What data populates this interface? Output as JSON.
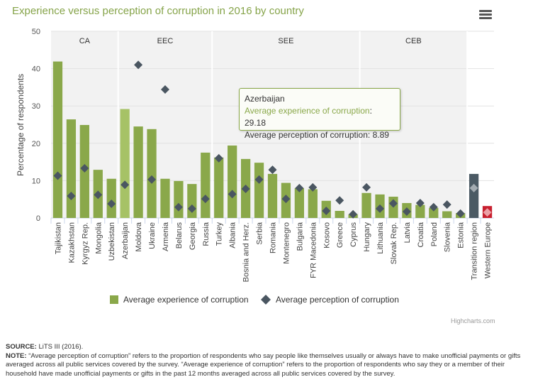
{
  "chart_data": {
    "type": "bar",
    "title": "Experience versus perception of corruption in 2016 by country",
    "ylabel": "Percentage of respondents",
    "xlabel": "",
    "ylim": [
      0,
      50
    ],
    "yticks": [
      0,
      10,
      20,
      30,
      40,
      50
    ],
    "grid": true,
    "legend_placement": "bottom",
    "categories": [
      "Tajikistan",
      "Kazakhstan",
      "Kyrgyz Rep.",
      "Mongolia",
      "Uzbekistan",
      "Azerbaijan",
      "Moldova",
      "Ukraine",
      "Armenia",
      "Belarus",
      "Georgia",
      "Russia",
      "Turkey",
      "Albania",
      "Bosnia and Herz.",
      "Serbia",
      "Romania",
      "Montenegro",
      "Bulgaria",
      "FYR Macedonia",
      "Kosovo",
      "Greece",
      "Cyprus",
      "Hungary",
      "Lithuania",
      "Slovak Rep.",
      "Latvia",
      "Croatia",
      "Poland",
      "Slovenia",
      "Estonia",
      "Transition region",
      "Western Europe"
    ],
    "regions": [
      {
        "label": "CA",
        "from": "Tajikistan",
        "to": "Uzbekistan"
      },
      {
        "label": "EEC",
        "from": "Azerbaijan",
        "to": "Russia"
      },
      {
        "label": "SEE",
        "from": "Turkey",
        "to": "Cyprus"
      },
      {
        "label": "CEB",
        "from": "Hungary",
        "to": "Estonia"
      }
    ],
    "series": [
      {
        "name": "Average experience of corruption",
        "type": "bar",
        "color": "#8aa84a",
        "values": [
          41.9,
          26.4,
          24.9,
          12.9,
          10.5,
          29.18,
          24.5,
          23.8,
          10.5,
          9.9,
          9.1,
          17.5,
          16.2,
          19.4,
          15.8,
          14.8,
          11.8,
          9.4,
          8.0,
          7.7,
          4.6,
          1.9,
          1.0,
          6.7,
          6.3,
          5.7,
          4.0,
          3.5,
          2.7,
          1.8,
          1.3,
          11.8,
          3.2
        ]
      },
      {
        "name": "Average perception of corruption",
        "type": "scatter",
        "marker": "diamond",
        "color": "#4a5661",
        "values": [
          11.3,
          5.9,
          13.3,
          6.2,
          3.8,
          8.89,
          41.0,
          10.3,
          34.4,
          2.9,
          2.5,
          5.1,
          16.0,
          6.4,
          7.8,
          10.3,
          12.9,
          5.1,
          8.0,
          8.2,
          1.9,
          4.7,
          1.0,
          8.2,
          2.5,
          3.9,
          1.7,
          4.0,
          2.9,
          3.6,
          1.2,
          8.0,
          1.5
        ]
      }
    ],
    "highlight_colors": {
      "hovered_bar": "#a6c266",
      "transition_bar": "#4b5a64",
      "transition_marker": "#a3abb1",
      "western_bar": "#c8202f",
      "western_marker": "#eba0a6",
      "band": "#f2f2f2"
    },
    "tooltip": {
      "country": "Azerbaijan",
      "exp_label": "Average experience of corruption",
      "exp_value": "29.18",
      "perc_label": "Average perception of corruption",
      "perc_value": "8.89"
    }
  },
  "menu_icon": "hamburger-menu-icon",
  "credits": "Highcharts.com",
  "source_label": "SOURCE:",
  "source_text": " LiTS III (2016).",
  "note_label": "NOTE:",
  "note_text": " “Average perception of corruption” refers to the proportion of respondents who say people like themselves usually or always have to make unofficial payments or gifts averaged across all public services covered by the survey. “Average experience of corruption” refers to the proportion of respondents who say they or a member of their household have made unofficial payments or gifts in the past 12 months averaged across all public services covered by the survey."
}
